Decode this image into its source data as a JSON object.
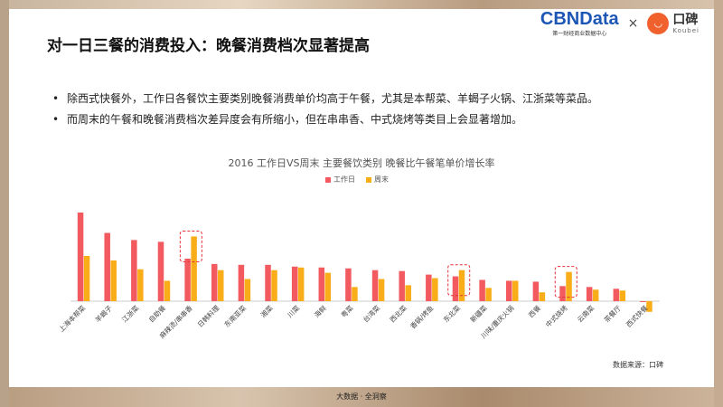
{
  "header": {
    "title": "对一日三餐的消费投入：晚餐消费档次显著提高",
    "cbn_logo": "CBNData",
    "cbn_tagline": "第一财经商业数据中心",
    "times": "×",
    "koubei_cn": "口碑",
    "koubei_en": "Koubei"
  },
  "bullets": [
    "除西式快餐外，工作日各餐饮主要类别晚餐消费单价均高于午餐，尤其是本帮菜、羊蝎子火锅、江浙菜等菜品。",
    "而周末的午餐和晚餐消费档次差异度会有所缩小，但在串串香、中式烧烤等类目上会显著增加。"
  ],
  "source": "数据来源：口碑",
  "footer": "大数据 · 全洞察",
  "colors": {
    "weekday": "#f25a5f",
    "weekend": "#f9ad19"
  },
  "chart_data": {
    "type": "bar",
    "title": "2016 工作日VS周末 主要餐饮类别 晚餐比午餐笔单价增长率",
    "categories": [
      "上海本帮菜",
      "羊蝎子",
      "江浙菜",
      "自助餐",
      "麻辣烫/串串香",
      "日韩料理",
      "东南亚菜",
      "湘菜",
      "川菜",
      "海鲜",
      "粤菜",
      "台湾菜",
      "西北菜",
      "香锅/烤鱼",
      "东北菜",
      "新疆菜",
      "川味/重庆火锅",
      "西餐",
      "中式烧烤",
      "云南菜",
      "茶餐厅",
      "西式快餐"
    ],
    "series": [
      {
        "name": "工作日",
        "values": [
          1.0,
          0.77,
          0.69,
          0.67,
          0.48,
          0.42,
          0.41,
          0.41,
          0.39,
          0.38,
          0.37,
          0.35,
          0.34,
          0.3,
          0.28,
          0.24,
          0.23,
          0.22,
          0.17,
          0.16,
          0.14,
          -0.01
        ]
      },
      {
        "name": "周末",
        "values": [
          0.51,
          0.46,
          0.36,
          0.23,
          0.73,
          0.35,
          0.25,
          0.35,
          0.38,
          0.32,
          0.16,
          0.25,
          0.18,
          0.26,
          0.35,
          0.15,
          0.23,
          0.1,
          0.33,
          0.13,
          0.12,
          -0.12
        ]
      }
    ],
    "highlighted": [
      "麻辣烫/串串香",
      "东北菜",
      "中式烧烤"
    ],
    "ylim": [
      -0.15,
      1.0
    ],
    "grid": false,
    "legend": "top-center"
  }
}
